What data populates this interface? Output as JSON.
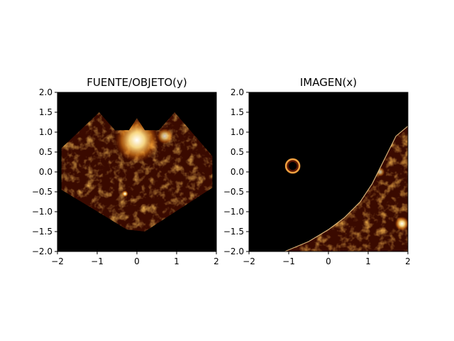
{
  "chart_data": [
    {
      "type": "heatmap",
      "title": "FUENTE/OBJETO(y)",
      "xlim": [
        -2,
        2
      ],
      "ylim": [
        -2,
        2
      ],
      "xticks": [
        "−2",
        "−1",
        "0",
        "1",
        "2"
      ],
      "yticks": [
        "2.0",
        "1.5",
        "1.0",
        "0.5",
        "0.0",
        "−0.5",
        "−1.0",
        "−1.5",
        "−2.0"
      ],
      "colormap": "afmhot",
      "background": "#000000",
      "region": {
        "shape": "heart",
        "outline": [
          [
            -0.95,
            1.5
          ],
          [
            -0.55,
            1.05
          ],
          [
            -0.2,
            1.05
          ],
          [
            0,
            1.35
          ],
          [
            0.2,
            1.05
          ],
          [
            0.55,
            1.05
          ],
          [
            0.95,
            1.5
          ],
          [
            1.9,
            0.4
          ],
          [
            1.9,
            -0.4
          ],
          [
            0.2,
            -1.5
          ],
          [
            -0.25,
            -1.45
          ],
          [
            -1.9,
            -0.45
          ],
          [
            -1.9,
            0.6
          ]
        ],
        "bright_spots": [
          {
            "x": 0.0,
            "y": 0.8,
            "size": 0.55,
            "intensity": 1.0
          },
          {
            "x": 0.7,
            "y": 0.9,
            "size": 0.2,
            "intensity": 0.8
          },
          {
            "x": -0.3,
            "y": -0.55,
            "size": 0.08,
            "intensity": 1.0
          }
        ]
      }
    },
    {
      "type": "heatmap",
      "title": "IMAGEN(x)",
      "xlim": [
        -2,
        2
      ],
      "ylim": [
        -2,
        2
      ],
      "xticks": [
        "−2",
        "−1",
        "0",
        "1",
        "2"
      ],
      "yticks": [
        "2.0",
        "1.5",
        "1.0",
        "0.5",
        "0.0",
        "−0.5",
        "−1.0",
        "−1.5",
        "−2.0"
      ],
      "colormap": "afmhot",
      "background": "#000000",
      "region": {
        "shape": "curved-band",
        "outline": [
          [
            2,
            1.15
          ],
          [
            1.7,
            0.9
          ],
          [
            1.4,
            0.3
          ],
          [
            1.1,
            -0.3
          ],
          [
            0.8,
            -0.75
          ],
          [
            0.4,
            -1.15
          ],
          [
            0.0,
            -1.45
          ],
          [
            -0.5,
            -1.75
          ],
          [
            -1.1,
            -2.0
          ],
          [
            2,
            -2.0
          ]
        ],
        "ring": {
          "x": -0.9,
          "y": 0.15,
          "r": 0.17
        },
        "bright_spots": [
          {
            "x": 1.85,
            "y": -1.3,
            "size": 0.18,
            "intensity": 1.0
          },
          {
            "x": 1.3,
            "y": 0.0,
            "size": 0.12,
            "intensity": 0.7
          }
        ]
      }
    }
  ]
}
